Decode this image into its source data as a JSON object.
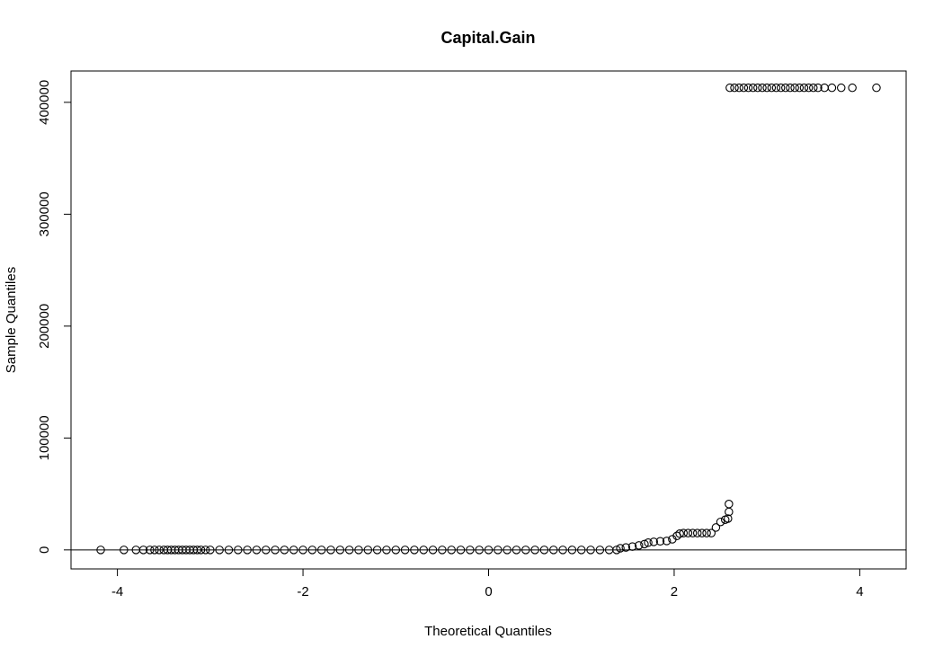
{
  "chart_data": {
    "type": "scatter",
    "title": "Capital.Gain",
    "xlabel": "Theoretical Quantiles",
    "ylabel": "Sample Quantiles",
    "xlim": [
      -4.5,
      4.5
    ],
    "ylim": [
      -17000,
      428000
    ],
    "x_ticks": [
      -4,
      -2,
      0,
      2,
      4
    ],
    "x_tick_labels": [
      "-4",
      "-2",
      "0",
      "2",
      "4"
    ],
    "y_ticks": [
      0,
      100000,
      200000,
      300000,
      400000
    ],
    "y_tick_labels": [
      "0",
      "100000",
      "200000",
      "300000",
      "400000"
    ],
    "reference_line_y": 0,
    "grid": false,
    "marker": "open-circle",
    "series": [
      {
        "points": [
          [
            -4.18,
            0
          ],
          [
            -3.93,
            0
          ],
          [
            -3.8,
            0
          ],
          [
            -3.72,
            0
          ],
          [
            -3.65,
            0
          ],
          [
            -3.6,
            0
          ],
          [
            -3.55,
            0
          ],
          [
            -3.5,
            0
          ],
          [
            -3.46,
            0
          ],
          [
            -3.42,
            0
          ],
          [
            -3.38,
            0
          ],
          [
            -3.34,
            0
          ],
          [
            -3.3,
            0
          ],
          [
            -3.26,
            0
          ],
          [
            -3.22,
            0
          ],
          [
            -3.18,
            0
          ],
          [
            -3.14,
            0
          ],
          [
            -3.1,
            0
          ],
          [
            -3.05,
            0
          ],
          [
            -3.0,
            0
          ],
          [
            -2.9,
            0
          ],
          [
            -2.8,
            0
          ],
          [
            -2.7,
            0
          ],
          [
            -2.6,
            0
          ],
          [
            -2.5,
            0
          ],
          [
            -2.4,
            0
          ],
          [
            -2.3,
            0
          ],
          [
            -2.2,
            0
          ],
          [
            -2.1,
            0
          ],
          [
            -2.0,
            0
          ],
          [
            -1.9,
            0
          ],
          [
            -1.8,
            0
          ],
          [
            -1.7,
            0
          ],
          [
            -1.6,
            0
          ],
          [
            -1.5,
            0
          ],
          [
            -1.4,
            0
          ],
          [
            -1.3,
            0
          ],
          [
            -1.2,
            0
          ],
          [
            -1.1,
            0
          ],
          [
            -1.0,
            0
          ],
          [
            -0.9,
            0
          ],
          [
            -0.8,
            0
          ],
          [
            -0.7,
            0
          ],
          [
            -0.6,
            0
          ],
          [
            -0.5,
            0
          ],
          [
            -0.4,
            0
          ],
          [
            -0.3,
            0
          ],
          [
            -0.2,
            0
          ],
          [
            -0.1,
            0
          ],
          [
            0.0,
            0
          ],
          [
            0.1,
            0
          ],
          [
            0.2,
            0
          ],
          [
            0.3,
            0
          ],
          [
            0.4,
            0
          ],
          [
            0.5,
            0
          ],
          [
            0.6,
            0
          ],
          [
            0.7,
            0
          ],
          [
            0.8,
            0
          ],
          [
            0.9,
            0
          ],
          [
            1.0,
            0
          ],
          [
            1.1,
            0
          ],
          [
            1.2,
            0
          ],
          [
            1.3,
            0
          ],
          [
            1.38,
            0
          ],
          [
            1.42,
            1500
          ],
          [
            1.48,
            2200
          ],
          [
            1.55,
            3000
          ],
          [
            1.62,
            4000
          ],
          [
            1.68,
            5200
          ],
          [
            1.72,
            6500
          ],
          [
            1.78,
            7200
          ],
          [
            1.85,
            7700
          ],
          [
            1.92,
            8000
          ],
          [
            1.98,
            9500
          ],
          [
            2.03,
            12500
          ],
          [
            2.06,
            14500
          ],
          [
            2.1,
            15000
          ],
          [
            2.15,
            15000
          ],
          [
            2.2,
            15000
          ],
          [
            2.25,
            15000
          ],
          [
            2.3,
            15000
          ],
          [
            2.35,
            15000
          ],
          [
            2.4,
            15000
          ],
          [
            2.45,
            20000
          ],
          [
            2.5,
            25000
          ],
          [
            2.55,
            27000
          ],
          [
            2.58,
            28000
          ],
          [
            2.59,
            34000
          ],
          [
            2.59,
            41000
          ],
          [
            2.6,
            413000
          ],
          [
            2.65,
            413000
          ],
          [
            2.7,
            413000
          ],
          [
            2.75,
            413000
          ],
          [
            2.8,
            413000
          ],
          [
            2.85,
            413000
          ],
          [
            2.9,
            413000
          ],
          [
            2.95,
            413000
          ],
          [
            3.0,
            413000
          ],
          [
            3.05,
            413000
          ],
          [
            3.1,
            413000
          ],
          [
            3.15,
            413000
          ],
          [
            3.2,
            413000
          ],
          [
            3.25,
            413000
          ],
          [
            3.3,
            413000
          ],
          [
            3.35,
            413000
          ],
          [
            3.4,
            413000
          ],
          [
            3.45,
            413000
          ],
          [
            3.5,
            413000
          ],
          [
            3.55,
            413000
          ],
          [
            3.62,
            413000
          ],
          [
            3.7,
            413000
          ],
          [
            3.8,
            413000
          ],
          [
            3.92,
            413000
          ],
          [
            4.18,
            413000
          ]
        ]
      }
    ]
  }
}
